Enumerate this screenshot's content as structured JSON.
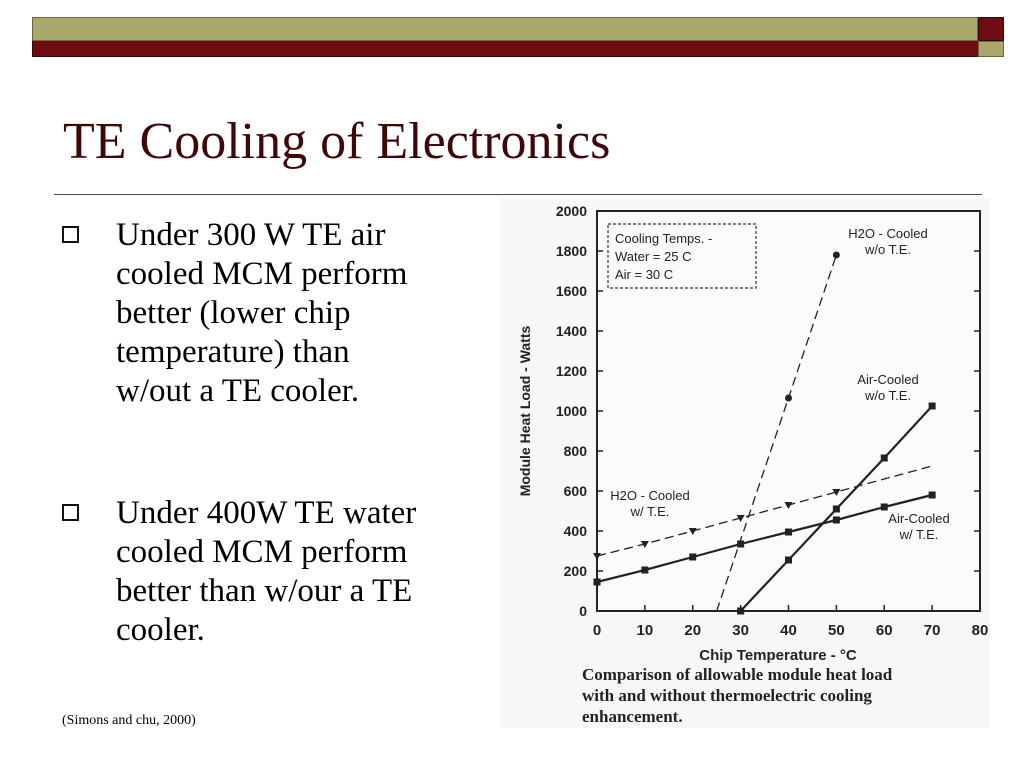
{
  "slide": {
    "title": "TE Cooling of Electronics",
    "bullets": [
      "Under 300 W TE air cooled MCM perform better (lower chip temperature) than w/out a TE cooler.",
      "Under 400W TE water cooled MCM perform better than w/our a TE cooler."
    ],
    "bullet_lines": [
      [
        "Under 300 W TE air",
        "cooled MCM perform",
        "better (lower chip",
        "temperature) than",
        "w/out a TE cooler."
      ],
      [
        "Under 400W TE water",
        "cooled MCM perform",
        "better than w/our a TE",
        "cooler."
      ]
    ],
    "citation": "(Simons and chu, 2000)"
  },
  "colors": {
    "title": "#3f0708",
    "bar_olive": "#a9a86a",
    "bar_maroon": "#6e0d0f"
  },
  "chart_data": {
    "type": "line",
    "xlabel": "Chip Temperature - °C",
    "ylabel": "Module Heat Load - Watts",
    "xlim": [
      0,
      80
    ],
    "ylim": [
      0,
      2000
    ],
    "xticks": [
      0,
      10,
      20,
      30,
      40,
      50,
      60,
      70,
      80
    ],
    "yticks": [
      0,
      200,
      400,
      600,
      800,
      1000,
      1200,
      1400,
      1600,
      1800,
      2000
    ],
    "legend_box": [
      "Cooling Temps. -",
      "Water = 25 C",
      "Air     = 30 C"
    ],
    "caption": [
      "Comparison of allowable module heat load",
      "with and without thermoelectric cooling",
      "enhancement."
    ],
    "series": [
      {
        "name": "H2O - Cooled w/o T.E.",
        "label_lines": [
          "H2O - Cooled",
          "w/o T.E."
        ],
        "style": "dashed",
        "marker": "circle",
        "x": [
          25,
          40,
          50
        ],
        "y": [
          0,
          1065,
          1780
        ],
        "marker_x": [
          40,
          50
        ]
      },
      {
        "name": "Air-Cooled w/o T.E.",
        "label_lines": [
          "Air-Cooled",
          "w/o T.E."
        ],
        "style": "solid",
        "marker": "square",
        "x": [
          30,
          40,
          50,
          60,
          70
        ],
        "y": [
          0,
          255,
          510,
          765,
          1025
        ],
        "marker_x": [
          30,
          40,
          50,
          60,
          70
        ]
      },
      {
        "name": "H2O - Cooled w/ T.E.",
        "label_lines": [
          "H2O - Cooled",
          "w/ T.E."
        ],
        "style": "dashed",
        "marker": "triangle",
        "x": [
          0,
          10,
          20,
          30,
          40,
          50,
          70
        ],
        "y": [
          275,
          335,
          400,
          465,
          530,
          595,
          725
        ],
        "marker_x": [
          0,
          10,
          20,
          30,
          40,
          50
        ]
      },
      {
        "name": "Air-Cooled w/ T.E.",
        "label_lines": [
          "Air-Cooled",
          "w/ T.E."
        ],
        "style": "solid",
        "marker": "square",
        "x": [
          0,
          10,
          20,
          30,
          40,
          50,
          60,
          70
        ],
        "y": [
          145,
          205,
          270,
          335,
          395,
          455,
          520,
          580
        ],
        "marker_x": [
          0,
          10,
          20,
          30,
          40,
          50,
          60,
          70
        ]
      }
    ]
  }
}
